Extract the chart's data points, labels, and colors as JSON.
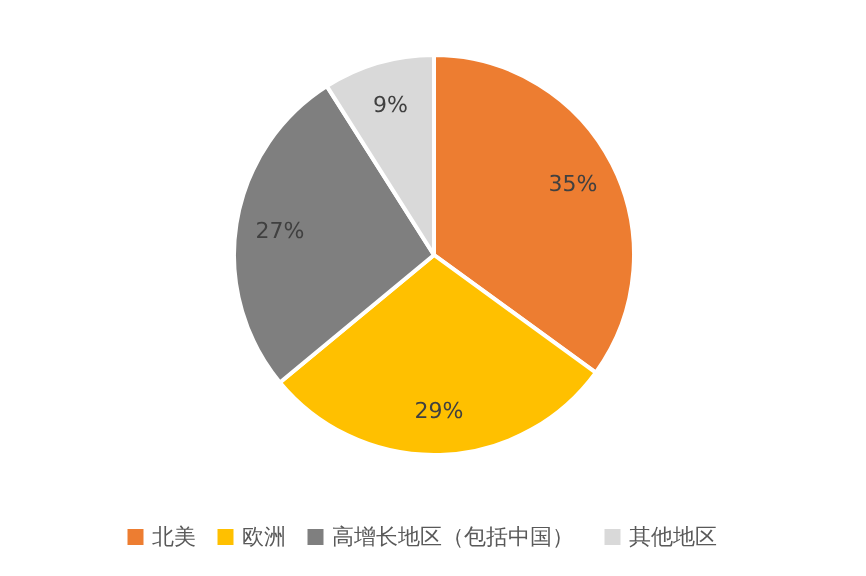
{
  "chart_data": {
    "type": "pie",
    "categories": [
      "北美",
      "欧洲",
      "高增长地区（包括中国）",
      "其他地区"
    ],
    "values": [
      35,
      29,
      27,
      9
    ],
    "colors": [
      "#ed7d31",
      "#ffc000",
      "#7f7f7f",
      "#d9d9d9"
    ],
    "value_labels": [
      "35%",
      "29%",
      "27%",
      "9%"
    ],
    "legend": "bottom"
  }
}
